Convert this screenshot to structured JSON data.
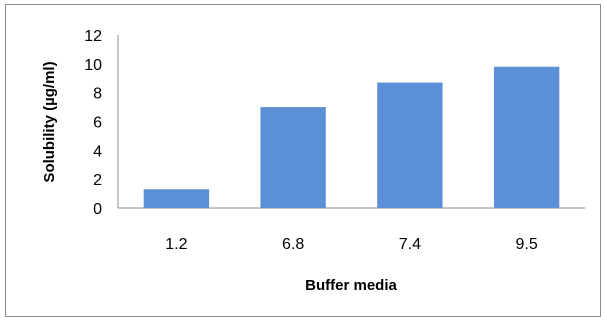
{
  "chart_data": {
    "type": "bar",
    "categories": [
      "1.2",
      "6.8",
      "7.4",
      "9.5"
    ],
    "values": [
      1.3,
      7.0,
      8.7,
      9.8
    ],
    "title": "",
    "xlabel": "Buffer media",
    "ylabel": "Solubility (µg/ml)",
    "ylim": [
      0,
      12
    ],
    "yticks": [
      "0",
      "2",
      "4",
      "6",
      "8",
      "10",
      "12"
    ],
    "grid": false,
    "legend": "none",
    "bar_color": "#5b8fd6"
  }
}
